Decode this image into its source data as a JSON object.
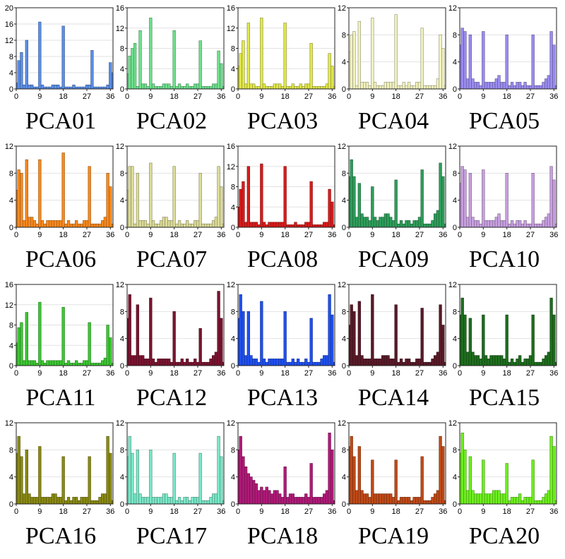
{
  "chart_data": [
    {
      "type": "bar",
      "title": "PCA01",
      "color": "#5b8fe8",
      "ylim": [
        0,
        20
      ],
      "yticks": [
        0,
        4,
        8,
        12,
        16,
        20
      ],
      "xticks": [
        0,
        9,
        18,
        27,
        36
      ],
      "values": [
        1.5,
        7.0,
        9.0,
        1.0,
        12.0,
        1.0,
        1.0,
        0.5,
        0.5,
        16.5,
        1.0,
        0.5,
        0.5,
        0.5,
        1.0,
        1.0,
        1.0,
        0.5,
        15.5,
        0.5,
        0.5,
        0.5,
        1.0,
        0.5,
        0.5,
        0.5,
        0.5,
        1.0,
        1.0,
        9.5,
        0.5,
        0.5,
        0.5,
        0.5,
        0.5,
        1.0,
        6.5,
        4.0
      ]
    },
    {
      "type": "bar",
      "title": "PCA02",
      "color": "#6ee08c",
      "ylim": [
        0,
        16
      ],
      "yticks": [
        0,
        4,
        8,
        12,
        16
      ],
      "xticks": [
        0,
        9,
        18,
        27,
        36
      ],
      "values": [
        3.0,
        6.5,
        8.0,
        9.0,
        0.5,
        11.5,
        1.0,
        1.0,
        0.5,
        14.0,
        1.0,
        0.5,
        0.5,
        0.5,
        1.0,
        1.0,
        1.0,
        0.5,
        11.5,
        0.5,
        1.0,
        0.5,
        0.5,
        1.0,
        0.5,
        0.5,
        1.0,
        1.0,
        9.5,
        0.5,
        0.5,
        0.5,
        0.5,
        1.0,
        1.0,
        7.5,
        5.0,
        0.5
      ]
    },
    {
      "type": "bar",
      "title": "PCA03",
      "color": "#e2e84a",
      "ylim": [
        0,
        16
      ],
      "yticks": [
        0,
        4,
        8,
        12,
        16
      ],
      "xticks": [
        0,
        9,
        18,
        27,
        36
      ],
      "values": [
        4.5,
        7.0,
        9.5,
        1.0,
        13.0,
        1.0,
        1.0,
        0.5,
        0.5,
        14.0,
        1.0,
        0.5,
        0.5,
        0.5,
        1.0,
        1.0,
        1.0,
        0.5,
        13.0,
        0.5,
        0.5,
        1.0,
        0.5,
        0.5,
        1.0,
        0.5,
        1.0,
        1.0,
        9.0,
        0.5,
        0.5,
        0.5,
        0.5,
        0.5,
        1.0,
        7.0,
        4.5,
        0.5
      ]
    },
    {
      "type": "bar",
      "title": "PCA04",
      "color": "#f2f2c0",
      "ylim": [
        0,
        12
      ],
      "yticks": [
        0,
        4,
        8,
        12
      ],
      "xticks": [
        0,
        9,
        18,
        27,
        36
      ],
      "values": [
        5.5,
        8.0,
        8.5,
        0.5,
        10.0,
        1.0,
        1.0,
        1.0,
        0.5,
        10.5,
        1.0,
        0.5,
        0.5,
        0.5,
        1.0,
        1.0,
        1.0,
        1.0,
        11.0,
        0.5,
        0.5,
        1.0,
        0.5,
        1.0,
        0.5,
        0.5,
        1.0,
        1.0,
        9.0,
        0.5,
        0.5,
        0.5,
        0.5,
        0.5,
        1.5,
        8.0,
        6.0,
        0.5
      ]
    },
    {
      "type": "bar",
      "title": "PCA05",
      "color": "#9b8cf0",
      "ylim": [
        0,
        12
      ],
      "yticks": [
        0,
        4,
        8,
        12
      ],
      "xticks": [
        0,
        9,
        18,
        27,
        36
      ],
      "values": [
        6.5,
        9.0,
        8.5,
        1.5,
        8.0,
        1.5,
        1.0,
        1.0,
        0.5,
        8.5,
        1.0,
        1.0,
        1.0,
        1.0,
        1.5,
        2.0,
        1.0,
        1.0,
        8.0,
        0.5,
        1.0,
        0.5,
        1.0,
        1.0,
        0.5,
        1.0,
        0.5,
        0.5,
        8.0,
        0.5,
        0.5,
        0.5,
        1.0,
        1.5,
        2.0,
        8.5,
        6.5,
        0.5
      ]
    },
    {
      "type": "bar",
      "title": "PCA06",
      "color": "#fa8a1e",
      "ylim": [
        0,
        12
      ],
      "yticks": [
        0,
        4,
        8,
        12
      ],
      "xticks": [
        0,
        9,
        18,
        27,
        36
      ],
      "values": [
        5.5,
        8.5,
        8.0,
        1.0,
        10.0,
        1.5,
        1.5,
        1.0,
        0.5,
        10.0,
        1.0,
        0.5,
        1.0,
        1.0,
        1.0,
        1.0,
        1.0,
        1.0,
        11.0,
        0.5,
        1.0,
        0.5,
        0.5,
        1.0,
        0.5,
        0.5,
        1.0,
        1.0,
        9.0,
        0.5,
        0.5,
        0.5,
        0.5,
        1.0,
        1.5,
        8.0,
        6.0,
        0.5
      ]
    },
    {
      "type": "bar",
      "title": "PCA07",
      "color": "#dcdc9a",
      "ylim": [
        0,
        12
      ],
      "yticks": [
        0,
        4,
        8,
        12
      ],
      "xticks": [
        0,
        9,
        18,
        27,
        36
      ],
      "values": [
        5.5,
        9.0,
        9.0,
        0.5,
        8.0,
        1.0,
        1.0,
        1.0,
        0.5,
        9.5,
        1.0,
        0.5,
        0.5,
        1.0,
        1.5,
        1.5,
        1.0,
        1.0,
        9.0,
        0.5,
        1.0,
        0.5,
        0.5,
        1.0,
        0.5,
        0.5,
        1.0,
        1.0,
        8.0,
        0.5,
        0.5,
        0.5,
        0.5,
        1.0,
        1.5,
        9.0,
        6.0,
        0.5
      ]
    },
    {
      "type": "bar",
      "title": "PCA08",
      "color": "#d81c1c",
      "ylim": [
        0,
        16
      ],
      "yticks": [
        0,
        4,
        8,
        12,
        16
      ],
      "xticks": [
        0,
        9,
        18,
        27,
        36
      ],
      "values": [
        4.0,
        7.5,
        9.0,
        1.0,
        12.0,
        1.0,
        1.0,
        1.0,
        0.5,
        12.5,
        1.0,
        0.5,
        1.0,
        1.0,
        1.0,
        1.0,
        1.0,
        1.0,
        12.0,
        0.5,
        0.5,
        0.5,
        1.0,
        0.5,
        0.5,
        0.5,
        1.0,
        1.0,
        9.0,
        0.5,
        0.5,
        0.5,
        0.5,
        1.0,
        1.0,
        7.5,
        5.0,
        0.5
      ]
    },
    {
      "type": "bar",
      "title": "PCA09",
      "color": "#2e9e5a",
      "ylim": [
        0,
        12
      ],
      "yticks": [
        0,
        4,
        8,
        12
      ],
      "xticks": [
        0,
        9,
        18,
        27,
        36
      ],
      "values": [
        7.5,
        10.0,
        7.5,
        1.5,
        6.5,
        2.0,
        1.5,
        1.5,
        1.0,
        6.0,
        1.5,
        1.0,
        1.5,
        1.5,
        2.0,
        2.0,
        1.5,
        1.0,
        7.0,
        0.5,
        1.0,
        0.5,
        1.0,
        1.0,
        0.5,
        1.0,
        1.0,
        1.5,
        8.5,
        0.5,
        0.5,
        0.5,
        1.0,
        2.0,
        2.5,
        9.5,
        7.5,
        0.5
      ]
    },
    {
      "type": "bar",
      "title": "PCA10",
      "color": "#c8a0e0",
      "ylim": [
        0,
        12
      ],
      "yticks": [
        0,
        4,
        8,
        12
      ],
      "xticks": [
        0,
        9,
        18,
        27,
        36
      ],
      "values": [
        6.5,
        9.0,
        8.5,
        1.5,
        8.0,
        1.5,
        1.0,
        1.0,
        0.5,
        8.5,
        1.0,
        1.0,
        1.0,
        1.0,
        1.5,
        2.0,
        1.0,
        1.0,
        8.0,
        0.5,
        1.0,
        0.5,
        1.0,
        1.0,
        0.5,
        1.0,
        0.5,
        0.5,
        8.0,
        0.5,
        0.5,
        0.5,
        1.0,
        1.5,
        2.0,
        9.0,
        7.0,
        0.5
      ]
    },
    {
      "type": "bar",
      "title": "PCA11",
      "color": "#3cc832",
      "ylim": [
        0,
        16
      ],
      "yticks": [
        0,
        4,
        8,
        12,
        16
      ],
      "xticks": [
        0,
        9,
        18,
        27,
        36
      ],
      "values": [
        4.5,
        7.5,
        8.5,
        1.0,
        10.5,
        1.0,
        1.0,
        1.0,
        0.5,
        12.5,
        1.0,
        0.5,
        1.0,
        1.0,
        1.0,
        1.0,
        1.0,
        1.0,
        11.5,
        0.5,
        1.0,
        0.5,
        0.5,
        1.0,
        0.5,
        0.5,
        1.0,
        1.0,
        8.5,
        0.5,
        0.5,
        0.5,
        0.5,
        1.0,
        1.5,
        8.0,
        5.5,
        0.5
      ]
    },
    {
      "type": "bar",
      "title": "PCA12",
      "color": "#7a1430",
      "ylim": [
        0,
        12
      ],
      "yticks": [
        0,
        4,
        8,
        12
      ],
      "xticks": [
        0,
        9,
        18,
        27,
        36
      ],
      "values": [
        7.0,
        10.5,
        1.5,
        1.5,
        9.0,
        1.5,
        1.5,
        1.0,
        1.0,
        10.0,
        1.0,
        0.5,
        1.0,
        1.0,
        1.0,
        1.0,
        1.0,
        0.5,
        8.0,
        0.5,
        0.5,
        1.0,
        0.5,
        1.0,
        0.5,
        0.5,
        1.0,
        0.5,
        5.5,
        0.5,
        0.5,
        0.5,
        1.0,
        1.5,
        2.0,
        11.0,
        7.0,
        0.5
      ]
    },
    {
      "type": "bar",
      "title": "PCA13",
      "color": "#2050f0",
      "ylim": [
        0,
        12
      ],
      "yticks": [
        0,
        4,
        8,
        12
      ],
      "xticks": [
        0,
        9,
        18,
        27,
        36
      ],
      "values": [
        7.0,
        10.5,
        8.0,
        1.5,
        8.0,
        1.5,
        1.0,
        1.0,
        0.5,
        9.5,
        1.0,
        0.5,
        1.0,
        1.0,
        1.0,
        1.0,
        1.0,
        1.0,
        8.0,
        0.5,
        0.5,
        1.0,
        0.5,
        1.0,
        0.5,
        0.5,
        1.0,
        0.5,
        7.0,
        0.5,
        0.5,
        0.5,
        1.0,
        1.5,
        1.5,
        10.5,
        7.5,
        0.5
      ]
    },
    {
      "type": "bar",
      "title": "PCA14",
      "color": "#5a1a28",
      "ylim": [
        0,
        12
      ],
      "yticks": [
        0,
        4,
        8,
        12
      ],
      "xticks": [
        0,
        9,
        18,
        27,
        36
      ],
      "values": [
        6.0,
        9.0,
        8.0,
        1.5,
        9.5,
        1.5,
        1.0,
        1.0,
        1.0,
        10.5,
        1.0,
        1.0,
        1.0,
        1.5,
        1.5,
        1.5,
        1.0,
        1.0,
        9.0,
        0.5,
        1.0,
        0.5,
        1.0,
        1.0,
        0.5,
        0.5,
        1.0,
        1.0,
        8.5,
        0.5,
        0.5,
        0.5,
        1.0,
        1.5,
        2.0,
        9.0,
        6.0,
        0.5
      ]
    },
    {
      "type": "bar",
      "title": "PCA15",
      "color": "#1e6e1e",
      "ylim": [
        0,
        12
      ],
      "yticks": [
        0,
        4,
        8,
        12
      ],
      "xticks": [
        0,
        9,
        18,
        27,
        36
      ],
      "values": [
        7.5,
        10.0,
        7.5,
        2.0,
        7.0,
        2.0,
        1.5,
        1.5,
        1.0,
        7.5,
        1.5,
        1.0,
        1.5,
        1.5,
        1.5,
        1.5,
        1.5,
        1.0,
        7.5,
        0.5,
        1.0,
        0.5,
        1.0,
        1.5,
        0.5,
        1.0,
        1.0,
        1.5,
        7.5,
        0.5,
        0.5,
        0.5,
        1.0,
        1.5,
        2.0,
        10.0,
        7.5,
        0.5
      ]
    },
    {
      "type": "bar",
      "title": "PCA16",
      "color": "#8a8a14",
      "ylim": [
        0,
        12
      ],
      "yticks": [
        0,
        4,
        8,
        12
      ],
      "xticks": [
        0,
        9,
        18,
        27,
        36
      ],
      "values": [
        7.5,
        10.0,
        7.0,
        1.5,
        8.0,
        1.5,
        1.0,
        1.0,
        1.0,
        8.5,
        1.0,
        1.0,
        1.0,
        1.0,
        1.5,
        1.5,
        1.0,
        1.0,
        7.0,
        0.5,
        1.0,
        0.5,
        1.0,
        1.0,
        0.5,
        1.0,
        1.0,
        1.0,
        7.0,
        0.5,
        0.5,
        0.5,
        1.0,
        1.5,
        1.5,
        10.0,
        7.5,
        0.5
      ]
    },
    {
      "type": "bar",
      "title": "PCA17",
      "color": "#7ae8c8",
      "ylim": [
        0,
        12
      ],
      "yticks": [
        0,
        4,
        8,
        12
      ],
      "xticks": [
        0,
        9,
        18,
        27,
        36
      ],
      "values": [
        7.0,
        10.0,
        7.5,
        1.5,
        8.0,
        1.5,
        1.0,
        1.0,
        1.0,
        8.0,
        1.0,
        1.0,
        1.0,
        1.0,
        1.5,
        1.5,
        1.0,
        1.0,
        7.5,
        0.5,
        1.0,
        0.5,
        1.0,
        1.0,
        0.5,
        1.0,
        1.0,
        1.0,
        7.5,
        0.5,
        0.5,
        0.5,
        1.0,
        1.5,
        1.5,
        10.0,
        7.0,
        0.5
      ]
    },
    {
      "type": "bar",
      "title": "PCA18",
      "color": "#b01a78",
      "ylim": [
        0,
        12
      ],
      "yticks": [
        0,
        4,
        8,
        12
      ],
      "xticks": [
        0,
        9,
        18,
        27,
        36
      ],
      "values": [
        8.0,
        10.0,
        7.0,
        5.5,
        4.5,
        4.0,
        3.5,
        3.0,
        2.0,
        2.5,
        2.0,
        2.5,
        2.0,
        1.5,
        2.0,
        2.0,
        1.5,
        1.0,
        5.5,
        1.0,
        1.5,
        1.5,
        1.0,
        1.0,
        1.0,
        1.0,
        1.5,
        1.0,
        6.0,
        1.0,
        1.0,
        1.0,
        1.0,
        1.5,
        2.0,
        10.5,
        8.0,
        0.5
      ]
    },
    {
      "type": "bar",
      "title": "PCA19",
      "color": "#c04a18",
      "ylim": [
        0,
        12
      ],
      "yticks": [
        0,
        4,
        8,
        12
      ],
      "xticks": [
        0,
        9,
        18,
        27,
        36
      ],
      "values": [
        8.5,
        10.0,
        7.0,
        2.0,
        8.5,
        2.0,
        1.5,
        1.5,
        1.0,
        6.5,
        1.5,
        1.5,
        1.5,
        1.5,
        1.5,
        1.5,
        1.5,
        1.0,
        6.5,
        0.5,
        1.0,
        1.0,
        1.0,
        1.0,
        0.5,
        1.0,
        1.0,
        1.0,
        7.0,
        0.5,
        0.5,
        0.5,
        1.0,
        1.5,
        2.0,
        10.0,
        8.5,
        0.5
      ]
    },
    {
      "type": "bar",
      "title": "PCA20",
      "color": "#6ef01e",
      "ylim": [
        0,
        12
      ],
      "yticks": [
        0,
        4,
        8,
        12
      ],
      "xticks": [
        0,
        9,
        18,
        27,
        36
      ],
      "values": [
        7.5,
        10.5,
        8.0,
        2.0,
        7.0,
        2.0,
        1.5,
        1.5,
        1.5,
        6.5,
        1.5,
        1.5,
        1.5,
        2.0,
        2.0,
        2.0,
        1.5,
        1.5,
        6.0,
        0.5,
        1.0,
        1.0,
        1.0,
        1.5,
        0.5,
        1.0,
        1.0,
        1.0,
        6.5,
        0.5,
        0.5,
        0.5,
        1.0,
        1.5,
        2.0,
        10.0,
        8.5,
        0.5
      ]
    }
  ]
}
